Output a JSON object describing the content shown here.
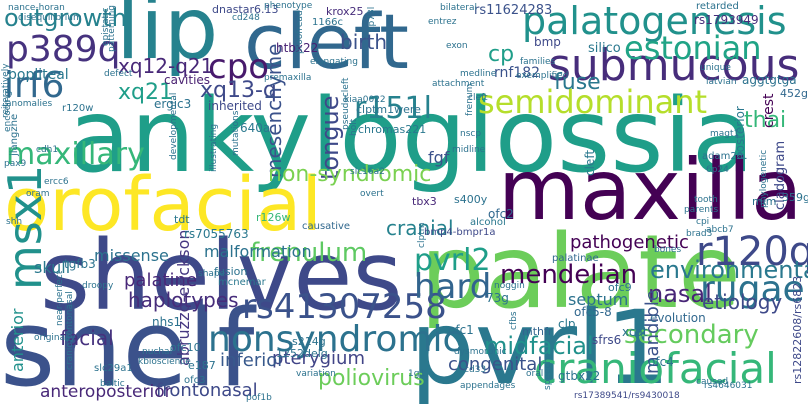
{
  "words": [
    {
      "t": "ankyloglossia",
      "c": "#1f9e89"
    },
    {
      "t": "palate",
      "c": "#6ccd5a"
    },
    {
      "t": "shelves",
      "c": "#3e4989"
    },
    {
      "t": "shelf",
      "c": "#3b528b"
    },
    {
      "t": "pvrl1",
      "c": "#2a788e"
    },
    {
      "t": "maxilla",
      "c": "#440154"
    },
    {
      "t": "orofacial",
      "c": "#fde725"
    },
    {
      "t": "cleft",
      "c": "#31688e"
    },
    {
      "t": "lip",
      "c": "#26828e"
    },
    {
      "t": "palatogenesis",
      "c": "#21918c"
    },
    {
      "t": "craniofacial",
      "c": "#35b779"
    },
    {
      "t": "submucous",
      "c": "#472d7b"
    },
    {
      "t": "rs41307258",
      "c": "#3b528b"
    },
    {
      "t": "nonsyndromic",
      "c": "#2c728e"
    },
    {
      "t": "msx1",
      "c": "#21918c"
    },
    {
      "t": "p389q",
      "c": "#46327e"
    },
    {
      "t": "irf6",
      "c": "#31688e"
    },
    {
      "t": "outgrowth",
      "c": "#26828e"
    },
    {
      "t": "frenulum",
      "c": "#5ec962"
    },
    {
      "t": "pvrl2",
      "c": "#1f9e89"
    },
    {
      "t": "r120q",
      "c": "#3e4989"
    },
    {
      "t": "rugae",
      "c": "#2c728e"
    },
    {
      "t": "hard",
      "c": "#32648e"
    },
    {
      "t": "estonian",
      "c": "#20a486"
    },
    {
      "t": "semidominant",
      "c": "#b5de2b"
    },
    {
      "t": "maxillary",
      "c": "#35b779"
    },
    {
      "t": "cpo",
      "c": "#481a6c"
    },
    {
      "t": "r151l",
      "c": "#26828e"
    },
    {
      "t": "xq12-q21",
      "c": "#482878"
    },
    {
      "t": "xq21",
      "c": "#1f9e89"
    },
    {
      "t": "xq13-q",
      "c": "#3e4989"
    },
    {
      "t": "mendelian",
      "c": "#440154"
    },
    {
      "t": "secondary",
      "c": "#65cb5e"
    },
    {
      "t": "poliovirus",
      "c": "#6ccd5a"
    },
    {
      "t": "environmental",
      "c": "#2a788e"
    },
    {
      "t": "midfacial",
      "c": "#21918c"
    },
    {
      "t": "nasal",
      "c": "#482677"
    },
    {
      "t": "tongue",
      "c": "#3e4989"
    },
    {
      "t": "mesenchyme",
      "c": "#3b528b"
    },
    {
      "t": "non-syndromic",
      "c": "#7ad151"
    },
    {
      "t": "cranial",
      "c": "#26828e"
    },
    {
      "t": "fuse",
      "c": "#2a788e"
    },
    {
      "t": "cp",
      "c": "#1f9e89"
    },
    {
      "t": "birth",
      "c": "#3b528b"
    },
    {
      "t": "thai",
      "c": "#35b779"
    },
    {
      "t": "palatine",
      "c": "#482878"
    },
    {
      "t": "haplotypes",
      "c": "#472d7b"
    },
    {
      "t": "facial",
      "c": "#46327e"
    },
    {
      "t": "etiology",
      "c": "#3e4989"
    },
    {
      "t": "septum",
      "c": "#2c728e"
    },
    {
      "t": "pathogenetic",
      "c": "#440154"
    },
    {
      "t": "mandible",
      "c": "#3b528b"
    },
    {
      "t": "pterygium",
      "c": "#414487"
    },
    {
      "t": "congenital",
      "c": "#3b528b"
    },
    {
      "t": "inferior",
      "c": "#38598c"
    },
    {
      "t": "frontonasal",
      "c": "#3e4989"
    },
    {
      "t": "anteroposterior",
      "c": "#482878"
    },
    {
      "t": "anterior",
      "c": "#21918c"
    },
    {
      "t": "abruzzo-erickson",
      "c": "#453781"
    },
    {
      "t": "malformation",
      "c": "#2c728e"
    },
    {
      "t": "missense",
      "c": "#2c728e"
    },
    {
      "t": "skull",
      "c": "#2a788e"
    },
    {
      "t": "rs7055763",
      "c": "#2a788e"
    },
    {
      "t": "dnastar6.13",
      "c": "#3e4989"
    },
    {
      "t": "krox25",
      "c": "#472d7b"
    },
    {
      "t": "rs11624283",
      "c": "#3b528b"
    },
    {
      "t": "rs1793949",
      "c": "#472d7b"
    },
    {
      "t": "rnf182",
      "c": "#3b528b"
    },
    {
      "t": "silico",
      "c": "#2a788e"
    },
    {
      "t": "bmp",
      "c": "#3e4989"
    },
    {
      "t": "popliteal",
      "c": "#2a788e"
    },
    {
      "t": "cavities",
      "c": "#481f70"
    },
    {
      "t": "ergic3",
      "c": "#2c728e"
    },
    {
      "t": "htbx22",
      "c": "#482173"
    },
    {
      "t": "chromas221",
      "c": "#2a788e"
    },
    {
      "t": "inherited",
      "c": "#3e4989"
    },
    {
      "t": "640a",
      "c": "#2a788e"
    },
    {
      "t": "fgf",
      "c": "#3b528b"
    },
    {
      "t": "cleft",
      "c": "#2a788e"
    },
    {
      "t": "crest",
      "c": "#440154"
    },
    {
      "t": "posterior",
      "c": "#2a788e"
    },
    {
      "t": "cladogram",
      "c": "#3e4989"
    },
    {
      "t": "aggtgtga",
      "c": "#2c728e"
    },
    {
      "t": "452g",
      "c": "#31688e"
    },
    {
      "t": "359g",
      "c": "#2c728e"
    },
    {
      "t": "mim",
      "c": "#2c728e"
    },
    {
      "t": "ofc2",
      "c": "#31688e"
    },
    {
      "t": "s400y",
      "c": "#2c728e"
    },
    {
      "t": "tbx3",
      "c": "#482878"
    },
    {
      "t": "r126w",
      "c": "#35b779"
    },
    {
      "t": "tdt",
      "c": "#2a788e"
    },
    {
      "t": "fusion",
      "c": "#2c728e"
    },
    {
      "t": "mcnemar",
      "c": "#2a788e"
    },
    {
      "t": "causative",
      "c": "#31688e"
    },
    {
      "t": "alcohol",
      "c": "#2a788e"
    },
    {
      "t": "bmp4-bmpr1a",
      "c": "#3e4989"
    },
    {
      "t": "palatinae",
      "c": "#31688e"
    },
    {
      "t": "ofc5-8",
      "c": "#31688e"
    },
    {
      "t": "clp",
      "c": "#2a788e"
    },
    {
      "t": "73g",
      "c": "#2c728e"
    },
    {
      "t": "ofc9",
      "c": "#2c728e"
    },
    {
      "t": "evolution",
      "c": "#31688e"
    },
    {
      "t": "sfrs6",
      "c": "#3e4989"
    },
    {
      "t": "xcat",
      "c": "#2c728e"
    },
    {
      "t": "ofc4",
      "c": "#2c728e"
    },
    {
      "t": "ofc1",
      "c": "#2c728e"
    },
    {
      "t": "mthfr",
      "c": "#32648e"
    },
    {
      "t": "gtbx22",
      "c": "#2c728e"
    },
    {
      "t": "s214g",
      "c": "#2c728e"
    },
    {
      "t": "1252delg",
      "c": "#2c728e"
    },
    {
      "t": "ofc10",
      "c": "#2c728e"
    },
    {
      "t": "tgfb3",
      "c": "#2c728e"
    },
    {
      "t": "nhs1",
      "c": "#2c728e"
    },
    {
      "t": "e187",
      "c": "#2c728e"
    },
    {
      "t": "ofc3",
      "c": "#2c728e"
    },
    {
      "t": "slc29a1",
      "c": "#2c728e"
    },
    {
      "t": "baltic",
      "c": "#2c728e"
    },
    {
      "t": "rs12822608/rs6823",
      "c": "#3e4989"
    },
    {
      "t": "rs17389541/rs9430018",
      "c": "#3e4989"
    },
    {
      "t": "irf6",
      "c": "#2c728e"
    },
    {
      "t": "jiangzhe",
      "c": "#2c728e"
    },
    {
      "t": "pax9",
      "c": "#2c728e"
    },
    {
      "t": "ercc6",
      "c": "#2c728e"
    },
    {
      "t": "shh",
      "c": "#2c728e"
    },
    {
      "t": "r120w",
      "c": "#2c728e"
    },
    {
      "t": "nance-horan",
      "c": "#2c728e"
    },
    {
      "t": "patterning",
      "c": "#2c728e"
    },
    {
      "t": "epistatic",
      "c": "#2c728e"
    },
    {
      "t": "defect",
      "c": "#2c728e"
    },
    {
      "t": "phenotype",
      "c": "#2c728e"
    },
    {
      "t": "1166c",
      "c": "#2c728e"
    },
    {
      "t": "cd248",
      "c": "#2c728e"
    },
    {
      "t": "proofread",
      "c": "#2c728e"
    },
    {
      "t": "tp73l",
      "c": "#2c728e"
    },
    {
      "t": "elongating",
      "c": "#2c728e"
    },
    {
      "t": "attachment",
      "c": "#2c728e"
    },
    {
      "t": "exon",
      "c": "#2c728e"
    },
    {
      "t": "bilateral",
      "c": "#2c728e"
    },
    {
      "t": "retarded",
      "c": "#2c728e"
    },
    {
      "t": "families",
      "c": "#2c728e"
    },
    {
      "t": "exemplified",
      "c": "#2c728e"
    },
    {
      "t": "latvian",
      "c": "#2c728e"
    },
    {
      "t": "medline",
      "c": "#2c728e"
    },
    {
      "t": "unique",
      "c": "#2c728e"
    },
    {
      "t": "cleft",
      "c": "#2c728e"
    },
    {
      "t": "clptm1were",
      "c": "#2c728e"
    },
    {
      "t": "adam29",
      "c": "#2c728e"
    },
    {
      "t": "6p24",
      "c": "#2c728e"
    },
    {
      "t": "magt1",
      "c": "#2c728e"
    },
    {
      "t": "nscp",
      "c": "#2c728e"
    },
    {
      "t": "frenum",
      "c": "#2c728e"
    },
    {
      "t": "midline",
      "c": "#2c728e"
    },
    {
      "t": "holt",
      "c": "#2c728e"
    },
    {
      "t": "slc16a2",
      "c": "#2c728e"
    },
    {
      "t": "overt",
      "c": "#2c728e"
    },
    {
      "t": "pseudocleft",
      "c": "#2c728e"
    },
    {
      "t": "mutations",
      "c": "#2c728e"
    },
    {
      "t": "illustrating",
      "c": "#2c728e"
    },
    {
      "t": "developmental",
      "c": "#2c728e"
    },
    {
      "t": "oram",
      "c": "#2c728e"
    },
    {
      "t": "cdh1",
      "c": "#2c728e"
    },
    {
      "t": "parents",
      "c": "#2c728e"
    },
    {
      "t": "cpi",
      "c": "#2c728e"
    },
    {
      "t": "tooth",
      "c": "#2c728e"
    },
    {
      "t": "brad3",
      "c": "#2c728e"
    },
    {
      "t": "abcb7",
      "c": "#2c728e"
    },
    {
      "t": "phylogenetic",
      "c": "#2c728e"
    },
    {
      "t": "bones",
      "c": "#2c728e"
    },
    {
      "t": "noggin",
      "c": "#2c728e"
    },
    {
      "t": "clptm",
      "c": "#2c728e"
    },
    {
      "t": "droopy",
      "c": "#2c728e"
    },
    {
      "t": "originally",
      "c": "#2c728e"
    },
    {
      "t": "shape",
      "c": "#2c728e"
    },
    {
      "t": "nuchal",
      "c": "#2c728e"
    },
    {
      "t": "kbioscience",
      "c": "#2c728e"
    },
    {
      "t": "variation",
      "c": "#2c728e"
    },
    {
      "t": "near-perfect",
      "c": "#2c728e"
    },
    {
      "t": "craniofrontonasal",
      "c": "#2c728e"
    },
    {
      "t": "dysmorphic",
      "c": "#2c728e"
    },
    {
      "t": "cd33",
      "c": "#2c728e"
    },
    {
      "t": "speech",
      "c": "#2c728e"
    },
    {
      "t": "appendages",
      "c": "#2c728e"
    },
    {
      "t": "rs4646031",
      "c": "#2c728e"
    },
    {
      "t": "caused",
      "c": "#2c728e"
    },
    {
      "t": "pof1b",
      "c": "#2c728e"
    },
    {
      "t": "encoding",
      "c": "#2c728e"
    },
    {
      "t": "reiteratively",
      "c": "#2c728e"
    },
    {
      "t": "anomalies",
      "c": "#2c728e"
    },
    {
      "t": "disequilibrium",
      "c": "#2c728e"
    },
    {
      "t": "premaxilla",
      "c": "#2c728e"
    },
    {
      "t": "kiaa0022",
      "c": "#2c728e"
    },
    {
      "t": "entrez",
      "c": "#2c728e"
    },
    {
      "t": "oral",
      "c": "#2c728e"
    },
    {
      "t": "cfbs",
      "c": "#2c728e"
    },
    {
      "t": "1g1",
      "c": "#2c728e"
    }
  ]
}
